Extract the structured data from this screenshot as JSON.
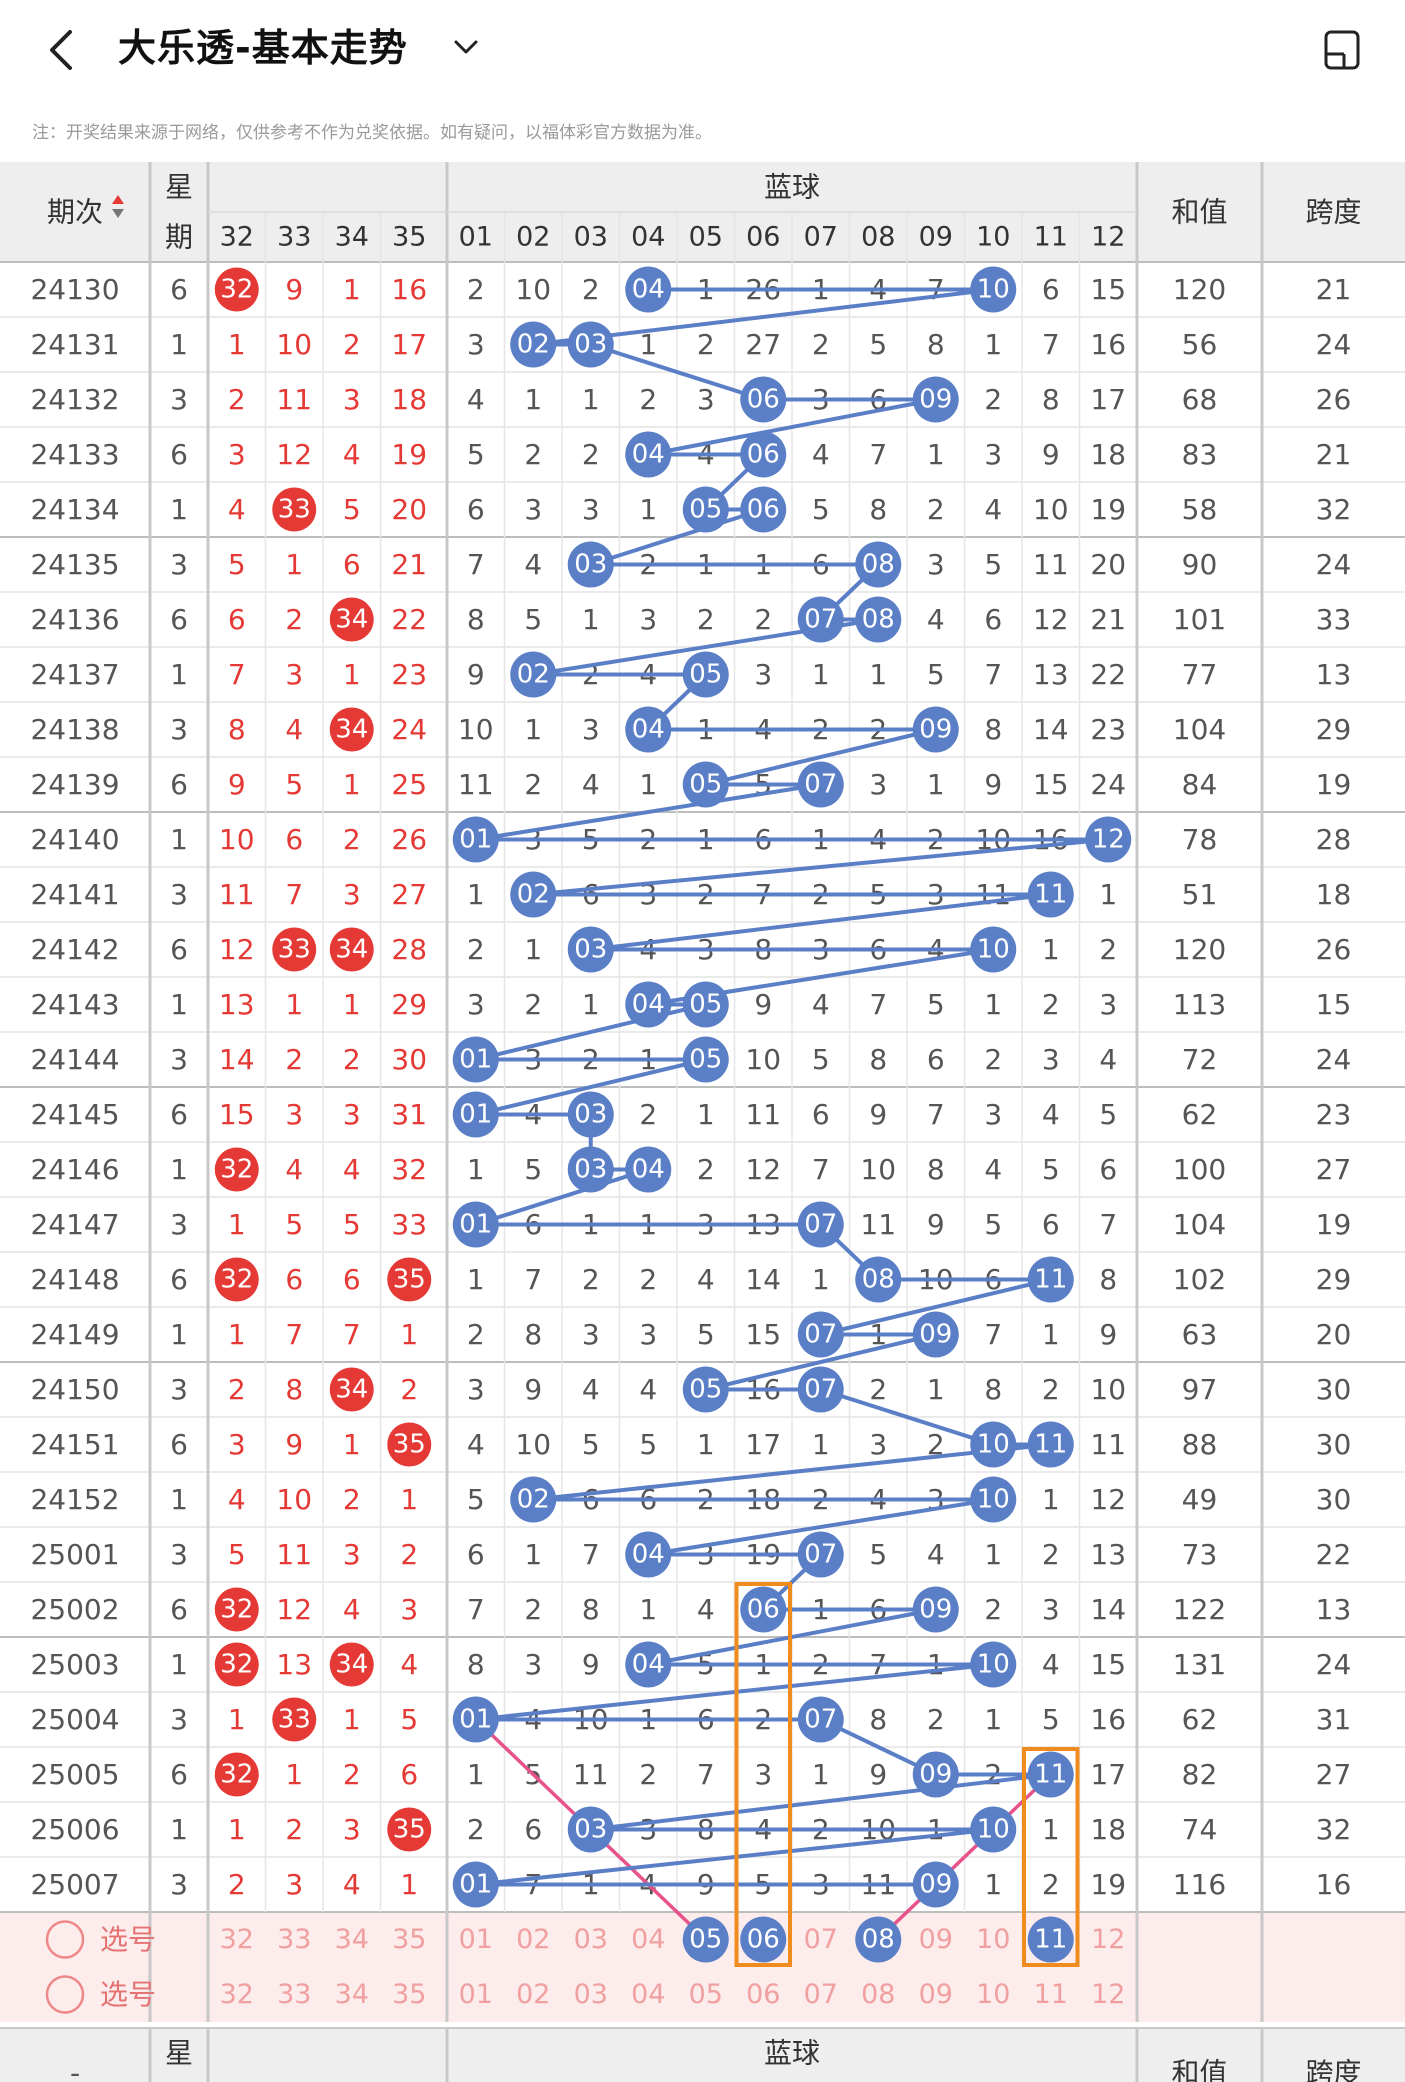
{
  "header": {
    "title": "大乐透-基本走势",
    "back_icon": "chevron-left-icon",
    "dropdown_icon": "chevron-down-icon",
    "layout_icon": "layout-toggle-icon"
  },
  "notice": "注：开奖结果来源于网络，仅供参考不作为兑奖依据。如有疑问，以福体彩官方数据为准。",
  "table": {
    "period_header": "期次",
    "weekday_header_top": "星",
    "weekday_header_bottom": "期",
    "blue_header": "蓝球",
    "sum_header": "和值",
    "span_header": "跨度",
    "red_columns": [
      "32",
      "33",
      "34",
      "35"
    ],
    "blue_columns": [
      "01",
      "02",
      "03",
      "04",
      "05",
      "06",
      "07",
      "08",
      "09",
      "10",
      "11",
      "12"
    ],
    "rows": [
      {
        "period": "24130",
        "weekday": "6",
        "red": [
          "32",
          "9",
          "1",
          "16"
        ],
        "red_hit": [
          true,
          false,
          false,
          false
        ],
        "blue": [
          "2",
          "10",
          "2",
          "04",
          "1",
          "26",
          "1",
          "4",
          "7",
          "10",
          "6",
          "15"
        ],
        "blue_hit": [
          4,
          10
        ],
        "sum": "120",
        "span": "21"
      },
      {
        "period": "24131",
        "weekday": "1",
        "red": [
          "1",
          "10",
          "2",
          "17"
        ],
        "red_hit": [
          false,
          false,
          false,
          false
        ],
        "blue": [
          "3",
          "02",
          "03",
          "1",
          "2",
          "27",
          "2",
          "5",
          "8",
          "1",
          "7",
          "16"
        ],
        "blue_hit": [
          2,
          3
        ],
        "sum": "56",
        "span": "24"
      },
      {
        "period": "24132",
        "weekday": "3",
        "red": [
          "2",
          "11",
          "3",
          "18"
        ],
        "red_hit": [
          false,
          false,
          false,
          false
        ],
        "blue": [
          "4",
          "1",
          "1",
          "2",
          "3",
          "06",
          "3",
          "6",
          "09",
          "2",
          "8",
          "17"
        ],
        "blue_hit": [
          6,
          9
        ],
        "sum": "68",
        "span": "26"
      },
      {
        "period": "24133",
        "weekday": "6",
        "red": [
          "3",
          "12",
          "4",
          "19"
        ],
        "red_hit": [
          false,
          false,
          false,
          false
        ],
        "blue": [
          "5",
          "2",
          "2",
          "04",
          "4",
          "06",
          "4",
          "7",
          "1",
          "3",
          "9",
          "18"
        ],
        "blue_hit": [
          4,
          6
        ],
        "sum": "83",
        "span": "21"
      },
      {
        "period": "24134",
        "weekday": "1",
        "red": [
          "4",
          "33",
          "5",
          "20"
        ],
        "red_hit": [
          false,
          true,
          false,
          false
        ],
        "blue": [
          "6",
          "3",
          "3",
          "1",
          "05",
          "06",
          "5",
          "8",
          "2",
          "4",
          "10",
          "19"
        ],
        "blue_hit": [
          5,
          6
        ],
        "sum": "58",
        "span": "32"
      },
      {
        "period": "24135",
        "weekday": "3",
        "red": [
          "5",
          "1",
          "6",
          "21"
        ],
        "red_hit": [
          false,
          false,
          false,
          false
        ],
        "blue": [
          "7",
          "4",
          "03",
          "2",
          "1",
          "1",
          "6",
          "08",
          "3",
          "5",
          "11",
          "20"
        ],
        "blue_hit": [
          3,
          8
        ],
        "sum": "90",
        "span": "24"
      },
      {
        "period": "24136",
        "weekday": "6",
        "red": [
          "6",
          "2",
          "34",
          "22"
        ],
        "red_hit": [
          false,
          false,
          true,
          false
        ],
        "blue": [
          "8",
          "5",
          "1",
          "3",
          "2",
          "2",
          "07",
          "08",
          "4",
          "6",
          "12",
          "21"
        ],
        "blue_hit": [
          7,
          8
        ],
        "sum": "101",
        "span": "33"
      },
      {
        "period": "24137",
        "weekday": "1",
        "red": [
          "7",
          "3",
          "1",
          "23"
        ],
        "red_hit": [
          false,
          false,
          false,
          false
        ],
        "blue": [
          "9",
          "02",
          "2",
          "4",
          "05",
          "3",
          "1",
          "1",
          "5",
          "7",
          "13",
          "22"
        ],
        "blue_hit": [
          2,
          5
        ],
        "sum": "77",
        "span": "13"
      },
      {
        "period": "24138",
        "weekday": "3",
        "red": [
          "8",
          "4",
          "34",
          "24"
        ],
        "red_hit": [
          false,
          false,
          true,
          false
        ],
        "blue": [
          "10",
          "1",
          "3",
          "04",
          "1",
          "4",
          "2",
          "2",
          "09",
          "8",
          "14",
          "23"
        ],
        "blue_hit": [
          4,
          9
        ],
        "sum": "104",
        "span": "29"
      },
      {
        "period": "24139",
        "weekday": "6",
        "red": [
          "9",
          "5",
          "1",
          "25"
        ],
        "red_hit": [
          false,
          false,
          false,
          false
        ],
        "blue": [
          "11",
          "2",
          "4",
          "1",
          "05",
          "5",
          "07",
          "3",
          "1",
          "9",
          "15",
          "24"
        ],
        "blue_hit": [
          5,
          7
        ],
        "sum": "84",
        "span": "19"
      },
      {
        "period": "24140",
        "weekday": "1",
        "red": [
          "10",
          "6",
          "2",
          "26"
        ],
        "red_hit": [
          false,
          false,
          false,
          false
        ],
        "blue": [
          "01",
          "3",
          "5",
          "2",
          "1",
          "6",
          "1",
          "4",
          "2",
          "10",
          "16",
          "12"
        ],
        "blue_hit": [
          1,
          12
        ],
        "sum": "78",
        "span": "28"
      },
      {
        "period": "24141",
        "weekday": "3",
        "red": [
          "11",
          "7",
          "3",
          "27"
        ],
        "red_hit": [
          false,
          false,
          false,
          false
        ],
        "blue": [
          "1",
          "02",
          "6",
          "3",
          "2",
          "7",
          "2",
          "5",
          "3",
          "11",
          "11",
          "1"
        ],
        "blue_hit": [
          2,
          11
        ],
        "sum": "51",
        "span": "18"
      },
      {
        "period": "24142",
        "weekday": "6",
        "red": [
          "12",
          "33",
          "34",
          "28"
        ],
        "red_hit": [
          false,
          true,
          true,
          false
        ],
        "blue": [
          "2",
          "1",
          "03",
          "4",
          "3",
          "8",
          "3",
          "6",
          "4",
          "10",
          "1",
          "2"
        ],
        "blue_hit": [
          3,
          10
        ],
        "sum": "120",
        "span": "26"
      },
      {
        "period": "24143",
        "weekday": "1",
        "red": [
          "13",
          "1",
          "1",
          "29"
        ],
        "red_hit": [
          false,
          false,
          false,
          false
        ],
        "blue": [
          "3",
          "2",
          "1",
          "04",
          "05",
          "9",
          "4",
          "7",
          "5",
          "1",
          "2",
          "3"
        ],
        "blue_hit": [
          4,
          5
        ],
        "sum": "113",
        "span": "15"
      },
      {
        "period": "24144",
        "weekday": "3",
        "red": [
          "14",
          "2",
          "2",
          "30"
        ],
        "red_hit": [
          false,
          false,
          false,
          false
        ],
        "blue": [
          "01",
          "3",
          "2",
          "1",
          "05",
          "10",
          "5",
          "8",
          "6",
          "2",
          "3",
          "4"
        ],
        "blue_hit": [
          1,
          5
        ],
        "sum": "72",
        "span": "24"
      },
      {
        "period": "24145",
        "weekday": "6",
        "red": [
          "15",
          "3",
          "3",
          "31"
        ],
        "red_hit": [
          false,
          false,
          false,
          false
        ],
        "blue": [
          "01",
          "4",
          "03",
          "2",
          "1",
          "11",
          "6",
          "9",
          "7",
          "3",
          "4",
          "5"
        ],
        "blue_hit": [
          1,
          3
        ],
        "sum": "62",
        "span": "23"
      },
      {
        "period": "24146",
        "weekday": "1",
        "red": [
          "32",
          "4",
          "4",
          "32"
        ],
        "red_hit": [
          true,
          false,
          false,
          false
        ],
        "blue": [
          "1",
          "5",
          "03",
          "04",
          "2",
          "12",
          "7",
          "10",
          "8",
          "4",
          "5",
          "6"
        ],
        "blue_hit": [
          3,
          4
        ],
        "sum": "100",
        "span": "27"
      },
      {
        "period": "24147",
        "weekday": "3",
        "red": [
          "1",
          "5",
          "5",
          "33"
        ],
        "red_hit": [
          false,
          false,
          false,
          false
        ],
        "blue": [
          "01",
          "6",
          "1",
          "1",
          "3",
          "13",
          "07",
          "11",
          "9",
          "5",
          "6",
          "7"
        ],
        "blue_hit": [
          1,
          7
        ],
        "sum": "104",
        "span": "19"
      },
      {
        "period": "24148",
        "weekday": "6",
        "red": [
          "32",
          "6",
          "6",
          "35"
        ],
        "red_hit": [
          true,
          false,
          false,
          true
        ],
        "blue": [
          "1",
          "7",
          "2",
          "2",
          "4",
          "14",
          "1",
          "08",
          "10",
          "6",
          "11",
          "8"
        ],
        "blue_hit": [
          8,
          11
        ],
        "sum": "102",
        "span": "29"
      },
      {
        "period": "24149",
        "weekday": "1",
        "red": [
          "1",
          "7",
          "7",
          "1"
        ],
        "red_hit": [
          false,
          false,
          false,
          false
        ],
        "blue": [
          "2",
          "8",
          "3",
          "3",
          "5",
          "15",
          "07",
          "1",
          "09",
          "7",
          "1",
          "9"
        ],
        "blue_hit": [
          7,
          9
        ],
        "sum": "63",
        "span": "20"
      },
      {
        "period": "24150",
        "weekday": "3",
        "red": [
          "2",
          "8",
          "34",
          "2"
        ],
        "red_hit": [
          false,
          false,
          true,
          false
        ],
        "blue": [
          "3",
          "9",
          "4",
          "4",
          "05",
          "16",
          "07",
          "2",
          "1",
          "8",
          "2",
          "10"
        ],
        "blue_hit": [
          5,
          7
        ],
        "sum": "97",
        "span": "30"
      },
      {
        "period": "24151",
        "weekday": "6",
        "red": [
          "3",
          "9",
          "1",
          "35"
        ],
        "red_hit": [
          false,
          false,
          false,
          true
        ],
        "blue": [
          "4",
          "10",
          "5",
          "5",
          "1",
          "17",
          "1",
          "3",
          "2",
          "10",
          "11",
          "11"
        ],
        "blue_hit": [
          10,
          11
        ],
        "sum": "88",
        "span": "30"
      },
      {
        "period": "24152",
        "weekday": "1",
        "red": [
          "4",
          "10",
          "2",
          "1"
        ],
        "red_hit": [
          false,
          false,
          false,
          false
        ],
        "blue": [
          "5",
          "02",
          "6",
          "6",
          "2",
          "18",
          "2",
          "4",
          "3",
          "10",
          "1",
          "12"
        ],
        "blue_hit": [
          2,
          10
        ],
        "sum": "49",
        "span": "30"
      },
      {
        "period": "25001",
        "weekday": "3",
        "red": [
          "5",
          "11",
          "3",
          "2"
        ],
        "red_hit": [
          false,
          false,
          false,
          false
        ],
        "blue": [
          "6",
          "1",
          "7",
          "04",
          "3",
          "19",
          "07",
          "5",
          "4",
          "1",
          "2",
          "13"
        ],
        "blue_hit": [
          4,
          7
        ],
        "sum": "73",
        "span": "22"
      },
      {
        "period": "25002",
        "weekday": "6",
        "red": [
          "32",
          "12",
          "4",
          "3"
        ],
        "red_hit": [
          true,
          false,
          false,
          false
        ],
        "blue": [
          "7",
          "2",
          "8",
          "1",
          "4",
          "06",
          "1",
          "6",
          "09",
          "2",
          "3",
          "14"
        ],
        "blue_hit": [
          6,
          9
        ],
        "sum": "122",
        "span": "13"
      },
      {
        "period": "25003",
        "weekday": "1",
        "red": [
          "32",
          "13",
          "34",
          "4"
        ],
        "red_hit": [
          true,
          false,
          true,
          false
        ],
        "blue": [
          "8",
          "3",
          "9",
          "04",
          "5",
          "1",
          "2",
          "7",
          "1",
          "10",
          "4",
          "15"
        ],
        "blue_hit": [
          4,
          10
        ],
        "sum": "131",
        "span": "24"
      },
      {
        "period": "25004",
        "weekday": "3",
        "red": [
          "1",
          "33",
          "1",
          "5"
        ],
        "red_hit": [
          false,
          true,
          false,
          false
        ],
        "blue": [
          "01",
          "4",
          "10",
          "1",
          "6",
          "2",
          "07",
          "8",
          "2",
          "1",
          "5",
          "16"
        ],
        "blue_hit": [
          1,
          7
        ],
        "sum": "62",
        "span": "31"
      },
      {
        "period": "25005",
        "weekday": "6",
        "red": [
          "32",
          "1",
          "2",
          "6"
        ],
        "red_hit": [
          true,
          false,
          false,
          false
        ],
        "blue": [
          "1",
          "5",
          "11",
          "2",
          "7",
          "3",
          "1",
          "9",
          "09",
          "2",
          "11",
          "17"
        ],
        "blue_hit": [
          9,
          11
        ],
        "sum": "82",
        "span": "27"
      },
      {
        "period": "25006",
        "weekday": "1",
        "red": [
          "1",
          "2",
          "3",
          "35"
        ],
        "red_hit": [
          false,
          false,
          false,
          true
        ],
        "blue": [
          "2",
          "6",
          "03",
          "3",
          "8",
          "4",
          "2",
          "10",
          "1",
          "10",
          "1",
          "18"
        ],
        "blue_hit": [
          3,
          10
        ],
        "sum": "74",
        "span": "32"
      },
      {
        "period": "25007",
        "weekday": "3",
        "red": [
          "2",
          "3",
          "4",
          "1"
        ],
        "red_hit": [
          false,
          false,
          false,
          false
        ],
        "blue": [
          "01",
          "7",
          "1",
          "4",
          "9",
          "5",
          "3",
          "11",
          "09",
          "1",
          "2",
          "19"
        ],
        "blue_hit": [
          1,
          9
        ],
        "sum": "116",
        "span": "16"
      }
    ],
    "select_label": "选号",
    "select_rows": [
      {
        "red": [
          "32",
          "33",
          "34",
          "35"
        ],
        "blue": [
          "01",
          "02",
          "03",
          "04",
          "05",
          "06",
          "07",
          "08",
          "09",
          "10",
          "11",
          "12"
        ],
        "picked": [
          5,
          6,
          8,
          11
        ]
      },
      {
        "red": [
          "32",
          "33",
          "34",
          "35"
        ],
        "blue": [
          "01",
          "02",
          "03",
          "04",
          "05",
          "06",
          "07",
          "08",
          "09",
          "10",
          "11",
          "12"
        ],
        "picked": []
      }
    ],
    "colors": {
      "red_ball": "#e53935",
      "blue_ball": "#5b7fc7",
      "line": "#5b7fc7",
      "pink_line": "#e8528a",
      "highlight_box": "#f08c1e",
      "select_bg": "#fdecec"
    }
  }
}
